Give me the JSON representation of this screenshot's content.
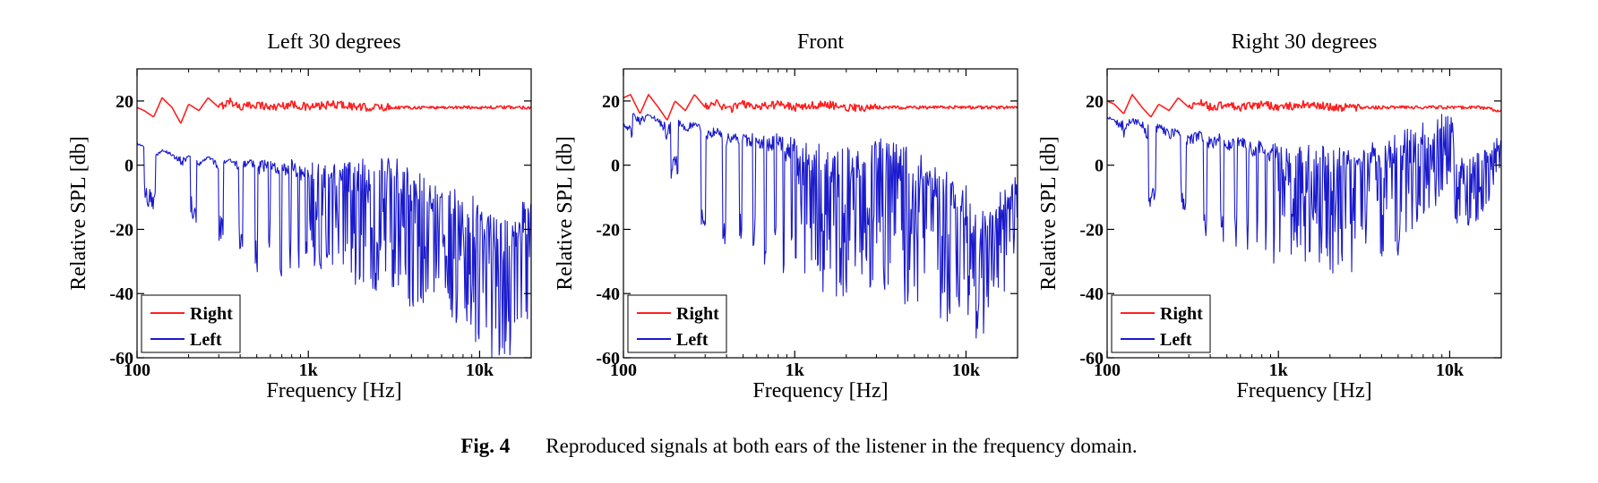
{
  "colors": {
    "right": "#ff2020",
    "left": "#1a1acc",
    "axis": "#000000"
  },
  "caption": {
    "label": "Fig. 4",
    "text": "Reproduced signals at both ears of the listener in the frequency domain."
  },
  "chart_data": [
    {
      "type": "line",
      "title": "Left 30 degrees",
      "xlabel": "Frequency [Hz]",
      "ylabel": "Relative SPL [db]",
      "xscale": "log",
      "xlim": [
        100,
        20000
      ],
      "ylim": [
        -60,
        30
      ],
      "xticks": [
        {
          "value": 100,
          "label": "100"
        },
        {
          "value": 1000,
          "label": "1k"
        },
        {
          "value": 10000,
          "label": "10k"
        }
      ],
      "yticks": [
        {
          "value": 20,
          "label": "20"
        },
        {
          "value": 0,
          "label": "0"
        },
        {
          "value": -20,
          "label": "-20"
        },
        {
          "value": -40,
          "label": "-40"
        },
        {
          "value": -60,
          "label": "-60"
        }
      ],
      "legend_position": "bottom-left",
      "series": [
        {
          "name": "Right",
          "color": "#ff2020",
          "x": [
            100,
            110,
            125,
            140,
            160,
            180,
            200,
            230,
            260,
            300,
            350,
            400,
            500,
            600,
            800,
            1000,
            1500,
            2000,
            3000,
            5000,
            8000,
            10000,
            15000,
            19500
          ],
          "y": [
            18,
            17,
            15,
            21,
            18,
            13,
            19,
            17,
            21,
            18,
            20,
            18,
            19,
            18,
            19,
            18,
            19,
            18,
            18,
            18,
            18,
            18,
            18,
            18
          ]
        },
        {
          "name": "Left",
          "color": "#1a1acc",
          "x": [
            100,
            110,
            125,
            140,
            160,
            180,
            200,
            230,
            260,
            300,
            350,
            400,
            450,
            500,
            600,
            700,
            800,
            900,
            1000,
            1200,
            1500,
            2000,
            2500,
            3000,
            4000,
            5000,
            6000,
            7000,
            8000,
            9000,
            10000,
            12000,
            14000,
            16000,
            18000,
            19500
          ],
          "y": [
            6,
            5,
            0,
            4,
            2,
            -5,
            3,
            -2,
            2,
            -4,
            1,
            -5,
            0,
            -6,
            -3,
            -8,
            -4,
            -10,
            -5,
            -8,
            -7,
            -9,
            -10,
            -7,
            -12,
            -14,
            -16,
            -18,
            -20,
            -22,
            -25,
            -27,
            -30,
            -28,
            -22,
            -15
          ],
          "y_min": [
            -20,
            -12,
            -15,
            -5,
            -10,
            -20,
            -15,
            -22,
            -18,
            -25,
            -20,
            -28,
            -25,
            -35,
            -28,
            -35,
            -32,
            -38,
            -32,
            -35,
            -38,
            -40,
            -42,
            -40,
            -45,
            -45,
            -48,
            -50,
            -52,
            -55,
            -58,
            -60,
            -60,
            -60,
            -55,
            -45
          ],
          "y_max": [
            7,
            6,
            4,
            5,
            4,
            3,
            3,
            2,
            3,
            1,
            2,
            1,
            2,
            1,
            2,
            0,
            2,
            0,
            2,
            0,
            1,
            2,
            4,
            3,
            0,
            -2,
            -5,
            -6,
            -5,
            -8,
            -10,
            -12,
            -15,
            -14,
            -10,
            -8
          ]
        }
      ]
    },
    {
      "type": "line",
      "title": "Front",
      "xlabel": "Frequency [Hz]",
      "ylabel": "Relative SPL [db]",
      "xscale": "log",
      "xlim": [
        100,
        20000
      ],
      "ylim": [
        -60,
        30
      ],
      "xticks": [
        {
          "value": 100,
          "label": "100"
        },
        {
          "value": 1000,
          "label": "1k"
        },
        {
          "value": 10000,
          "label": "10k"
        }
      ],
      "yticks": [
        {
          "value": 20,
          "label": "20"
        },
        {
          "value": 0,
          "label": "0"
        },
        {
          "value": -20,
          "label": "-20"
        },
        {
          "value": -40,
          "label": "-40"
        },
        {
          "value": -60,
          "label": "-60"
        }
      ],
      "legend_position": "bottom-left",
      "series": [
        {
          "name": "Right",
          "color": "#ff2020",
          "x": [
            100,
            110,
            125,
            140,
            160,
            180,
            200,
            230,
            260,
            300,
            350,
            400,
            500,
            600,
            800,
            1000,
            1500,
            2000,
            3000,
            5000,
            8000,
            10000,
            15000,
            19500
          ],
          "y": [
            21,
            22,
            16,
            22,
            18,
            14,
            20,
            17,
            22,
            18,
            20,
            17,
            19,
            18,
            19,
            18,
            19,
            18,
            18,
            18,
            18,
            18,
            18,
            18
          ]
        },
        {
          "name": "Left",
          "color": "#1a1acc",
          "x": [
            100,
            110,
            125,
            140,
            160,
            180,
            200,
            230,
            260,
            300,
            350,
            400,
            450,
            500,
            600,
            700,
            800,
            900,
            1000,
            1200,
            1500,
            2000,
            2500,
            3000,
            4000,
            5000,
            6000,
            7000,
            8000,
            9000,
            10000,
            12000,
            14000,
            16000,
            18000,
            19500
          ],
          "y": [
            15,
            16,
            10,
            14,
            12,
            2,
            12,
            8,
            10,
            5,
            8,
            3,
            6,
            2,
            4,
            -2,
            2,
            -4,
            0,
            -2,
            -4,
            -5,
            -6,
            -4,
            -6,
            -8,
            -10,
            -12,
            -14,
            -16,
            -18,
            -20,
            -22,
            -15,
            -10,
            -8
          ],
          "y_min": [
            12,
            10,
            -5,
            2,
            -8,
            -12,
            0,
            -15,
            -10,
            -25,
            -15,
            -30,
            -20,
            -28,
            -25,
            -35,
            -30,
            -38,
            -32,
            -35,
            -40,
            -42,
            -40,
            -38,
            -42,
            -45,
            -45,
            -48,
            -50,
            -48,
            -52,
            -55,
            -50,
            -45,
            -35,
            -25
          ],
          "y_max": [
            17,
            17,
            15,
            16,
            15,
            14,
            15,
            13,
            14,
            11,
            12,
            10,
            11,
            10,
            10,
            9,
            10,
            8,
            10,
            8,
            8,
            9,
            10,
            9,
            8,
            5,
            2,
            0,
            -2,
            -4,
            -6,
            -8,
            -12,
            -8,
            -5,
            -3
          ]
        }
      ]
    },
    {
      "type": "line",
      "title": "Right 30 degrees",
      "xlabel": "Frequency [Hz]",
      "ylabel": "Relative SPL [db]",
      "xscale": "log",
      "xlim": [
        100,
        20000
      ],
      "ylim": [
        -60,
        30
      ],
      "xticks": [
        {
          "value": 100,
          "label": "100"
        },
        {
          "value": 1000,
          "label": "1k"
        },
        {
          "value": 10000,
          "label": "10k"
        }
      ],
      "yticks": [
        {
          "value": 20,
          "label": "20"
        },
        {
          "value": 0,
          "label": "0"
        },
        {
          "value": -20,
          "label": "-20"
        },
        {
          "value": -40,
          "label": "-40"
        },
        {
          "value": -60,
          "label": "-60"
        }
      ],
      "legend_position": "bottom-left",
      "series": [
        {
          "name": "Right",
          "color": "#ff2020",
          "x": [
            100,
            110,
            125,
            140,
            160,
            180,
            200,
            230,
            260,
            300,
            350,
            400,
            500,
            600,
            800,
            1000,
            1500,
            2000,
            3000,
            5000,
            8000,
            10000,
            15000,
            19500
          ],
          "y": [
            20,
            19,
            16,
            22,
            18,
            15,
            19,
            17,
            21,
            18,
            20,
            18,
            19,
            18,
            19,
            18,
            19,
            18,
            18,
            18,
            18,
            18,
            18,
            17
          ]
        },
        {
          "name": "Left",
          "color": "#1a1acc",
          "x": [
            100,
            110,
            125,
            140,
            160,
            180,
            200,
            230,
            260,
            300,
            350,
            400,
            450,
            500,
            600,
            700,
            800,
            900,
            1000,
            1200,
            1500,
            2000,
            2500,
            3000,
            4000,
            5000,
            6000,
            7000,
            8000,
            9000,
            10000,
            11000,
            12000,
            14000,
            16000,
            18000,
            19500
          ],
          "y": [
            14,
            13,
            5,
            12,
            10,
            0,
            10,
            6,
            8,
            3,
            6,
            1,
            5,
            2,
            3,
            -1,
            2,
            -3,
            0,
            -2,
            -3,
            -4,
            -5,
            -3,
            -2,
            0,
            4,
            6,
            8,
            10,
            12,
            -2,
            -8,
            -6,
            -2,
            2,
            5
          ],
          "y_min": [
            10,
            5,
            -10,
            0,
            -10,
            -15,
            -5,
            -18,
            -10,
            -22,
            -15,
            -28,
            -20,
            -28,
            -25,
            -30,
            -28,
            -32,
            -30,
            -30,
            -32,
            -35,
            -38,
            -35,
            -32,
            -30,
            -25,
            -20,
            -15,
            -8,
            -5,
            -20,
            -22,
            -18,
            -15,
            -8,
            -3
          ],
          "y_max": [
            15,
            15,
            14,
            15,
            14,
            12,
            13,
            11,
            12,
            10,
            11,
            9,
            10,
            8,
            9,
            7,
            8,
            6,
            8,
            6,
            7,
            6,
            5,
            6,
            8,
            10,
            12,
            14,
            15,
            16,
            18,
            8,
            2,
            4,
            6,
            8,
            9
          ]
        }
      ]
    }
  ]
}
